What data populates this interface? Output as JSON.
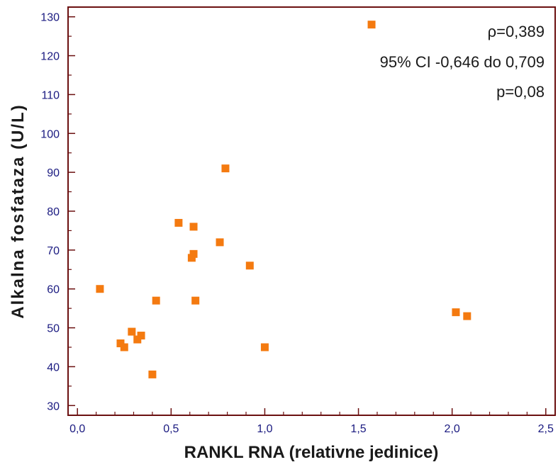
{
  "chart_data": {
    "type": "scatter",
    "title": "",
    "xlabel": "RANKL RNA (relativne jedinice)",
    "ylabel": "Alkalna fosfataza (U/L)",
    "xlim": [
      -0.05,
      2.55
    ],
    "ylim": [
      27.5,
      132.5
    ],
    "x_ticks": [
      0.0,
      0.5,
      1.0,
      1.5,
      2.0,
      2.5
    ],
    "x_tick_labels": [
      "0,0",
      "0,5",
      "1,0",
      "1,5",
      "2,0",
      "2,5"
    ],
    "y_ticks": [
      30,
      40,
      50,
      60,
      70,
      80,
      90,
      100,
      110,
      120,
      130
    ],
    "y_tick_labels": [
      "30",
      "40",
      "50",
      "60",
      "70",
      "80",
      "90",
      "100",
      "110",
      "120",
      "130"
    ],
    "grid": false,
    "marker": "square",
    "marker_color": "#f47a10",
    "frame_color": "#6b1010",
    "points": [
      {
        "x": 0.12,
        "y": 60
      },
      {
        "x": 0.23,
        "y": 46
      },
      {
        "x": 0.25,
        "y": 45
      },
      {
        "x": 0.29,
        "y": 49
      },
      {
        "x": 0.32,
        "y": 47
      },
      {
        "x": 0.34,
        "y": 48
      },
      {
        "x": 0.4,
        "y": 38
      },
      {
        "x": 0.42,
        "y": 57
      },
      {
        "x": 0.54,
        "y": 77
      },
      {
        "x": 0.61,
        "y": 68
      },
      {
        "x": 0.62,
        "y": 69
      },
      {
        "x": 0.62,
        "y": 76
      },
      {
        "x": 0.63,
        "y": 57
      },
      {
        "x": 0.76,
        "y": 72
      },
      {
        "x": 0.79,
        "y": 91
      },
      {
        "x": 0.92,
        "y": 66
      },
      {
        "x": 1.0,
        "y": 45
      },
      {
        "x": 1.57,
        "y": 128
      },
      {
        "x": 2.02,
        "y": 54
      },
      {
        "x": 2.08,
        "y": 53
      }
    ],
    "annotations": [
      "ρ=0,389",
      "95% CI -0,646 do 0,709",
      "p=0,08"
    ]
  }
}
